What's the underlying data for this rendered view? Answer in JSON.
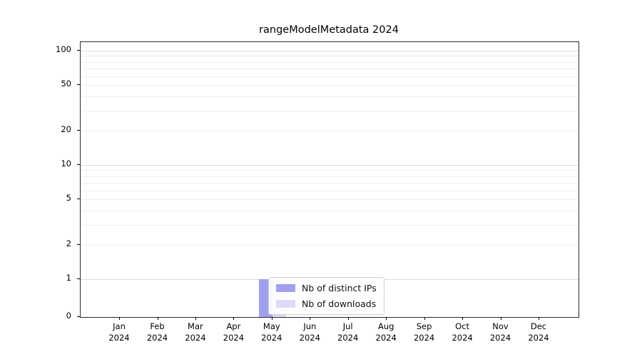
{
  "chart_data": {
    "type": "bar",
    "title": "rangeModelMetadata 2024",
    "categories": [
      "Jan",
      "Feb",
      "Mar",
      "Apr",
      "May",
      "Jun",
      "Jul",
      "Aug",
      "Sep",
      "Oct",
      "Nov",
      "Dec"
    ],
    "category_year": "2024",
    "series": [
      {
        "name": "Nb of distinct IPs",
        "color": "#a0a0ee",
        "values": [
          0,
          0,
          0,
          0,
          1,
          0,
          0,
          0,
          0,
          0,
          0,
          0
        ]
      },
      {
        "name": "Nb of downloads",
        "color": "#dcdcf9",
        "values": [
          0,
          0,
          0,
          0,
          1,
          0,
          0,
          0,
          0,
          0,
          0,
          0
        ]
      }
    ],
    "yticks": [
      0,
      1,
      2,
      5,
      10,
      20,
      50,
      100
    ],
    "scale": "symlog",
    "ylim": [
      0,
      100
    ],
    "grid": true,
    "legend_position": "lower-center",
    "background": "#ffffff"
  }
}
